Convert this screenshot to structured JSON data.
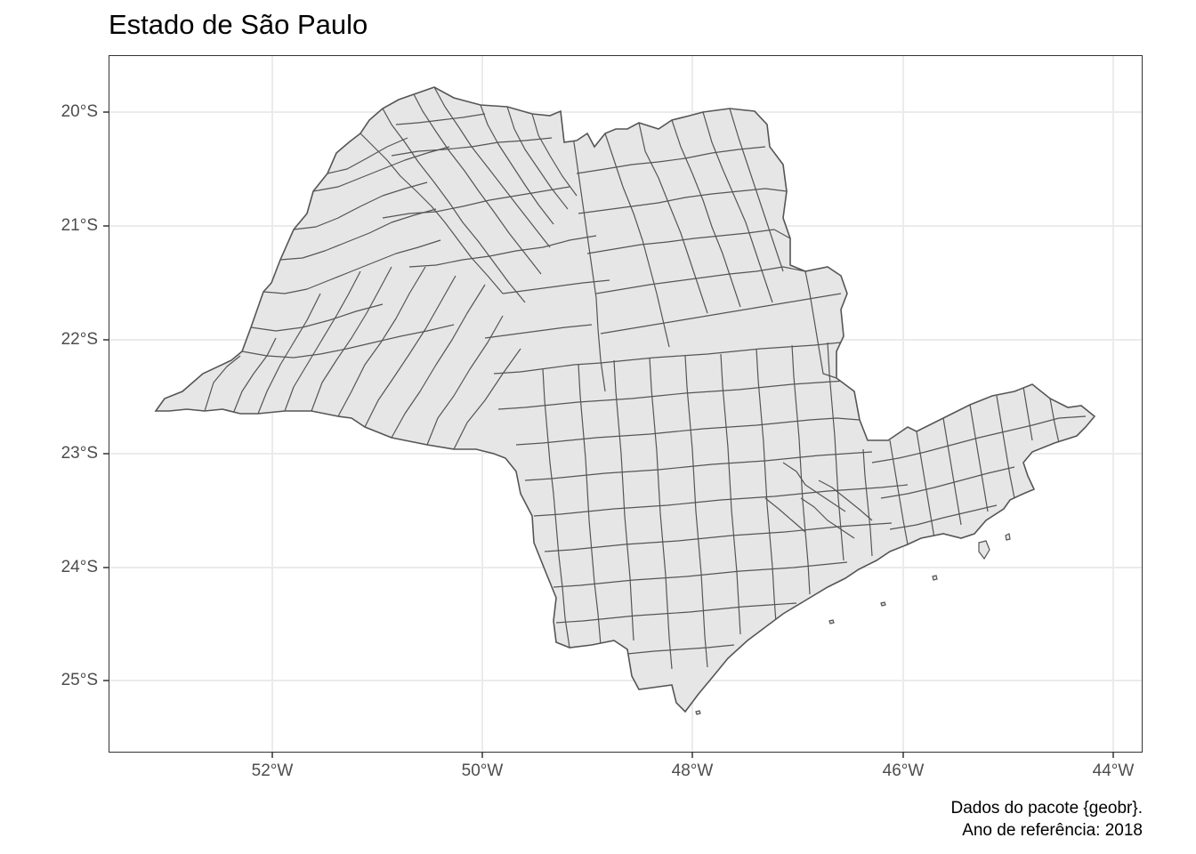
{
  "title": "Estado de São Paulo",
  "caption": {
    "line1": "Dados do pacote {geobr}.",
    "line2": "Ano de referência: 2018"
  },
  "axes": {
    "x_ticks": [
      "52°W",
      "50°W",
      "48°W",
      "46°W",
      "44°W"
    ],
    "y_ticks": [
      "20°S",
      "21°S",
      "22°S",
      "23°S",
      "24°S",
      "25°S"
    ],
    "grid": true
  },
  "map": {
    "region": "São Paulo state municipalities",
    "fill": "#e6e6e6",
    "stroke": "#555555",
    "gridline_color": "#ebebeb"
  }
}
